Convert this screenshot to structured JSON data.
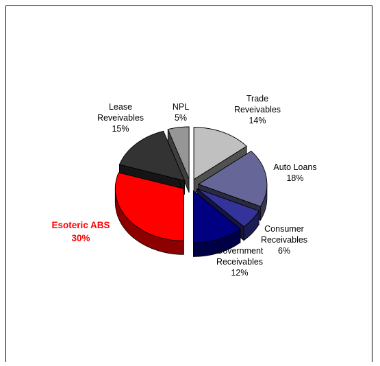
{
  "chart_data": {
    "type": "pie",
    "title": "",
    "exploded": true,
    "three_d": true,
    "slices": [
      {
        "name": "Trade Reveivables",
        "name_lines": [
          "Trade",
          "Reveivables"
        ],
        "value": 14,
        "label": "14%",
        "color": "#c0c0c0",
        "highlight": false
      },
      {
        "name": "Auto Loans",
        "name_lines": [
          "Auto Loans"
        ],
        "value": 18,
        "label": "18%",
        "color": "#666699",
        "highlight": false
      },
      {
        "name": "Consumer Receivables",
        "name_lines": [
          "Consumer",
          "Receivables"
        ],
        "value": 6,
        "label": "6%",
        "color": "#333399",
        "highlight": false
      },
      {
        "name": "Government Receivables",
        "name_lines": [
          "Government",
          "Receivables"
        ],
        "value": 12,
        "label": "12%",
        "color": "#000080",
        "highlight": false
      },
      {
        "name": "Esoteric ABS",
        "name_lines": [
          "Esoteric ABS"
        ],
        "value": 30,
        "label": "30%",
        "color": "#ff0000",
        "highlight": true
      },
      {
        "name": "Lease Reveivables",
        "name_lines": [
          "Lease",
          "Reveivables"
        ],
        "value": 15,
        "label": "15%",
        "color": "#333333",
        "highlight": false
      },
      {
        "name": "NPL",
        "name_lines": [
          "NPL"
        ],
        "value": 5,
        "label": "5%",
        "color": "#969696",
        "highlight": false
      }
    ]
  }
}
